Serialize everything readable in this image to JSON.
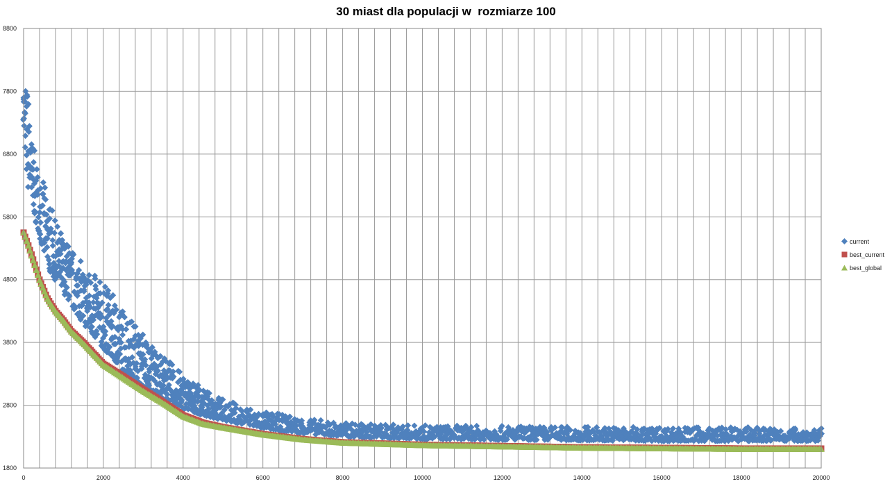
{
  "chart_data": {
    "type": "scatter",
    "title": "30 miast dla populacji w  rozmiarze 100",
    "xlabel": "",
    "ylabel": "",
    "xlim": [
      0,
      20000
    ],
    "ylim": [
      1800,
      8800
    ],
    "xticks": [
      0,
      2000,
      4000,
      6000,
      8000,
      10000,
      12000,
      14000,
      16000,
      18000,
      20000
    ],
    "yticks": [
      1800,
      2800,
      3800,
      4800,
      5800,
      6800,
      7800,
      8800
    ],
    "vertical_gridline_step": 400,
    "grid": true,
    "legend_position": "right",
    "series": [
      {
        "name": "current",
        "color": "#4f81bd",
        "marker": "diamond",
        "x": [
          0,
          100,
          200,
          400,
          600,
          800,
          1000,
          1500,
          2000,
          2500,
          3000,
          3500,
          4000,
          4500,
          5000,
          6000,
          7000,
          8000,
          10000,
          12000,
          14000,
          16000,
          18000,
          20000
        ],
        "y_min": [
          7250,
          6300,
          6100,
          5450,
          5000,
          4800,
          4600,
          4100,
          3700,
          3350,
          3100,
          2900,
          2750,
          2640,
          2560,
          2430,
          2350,
          2300,
          2260,
          2250,
          2240,
          2230,
          2230,
          2230
        ],
        "y_max": [
          7950,
          7900,
          7100,
          6500,
          6150,
          5750,
          5500,
          5050,
          4750,
          4350,
          3950,
          3600,
          3300,
          3050,
          2900,
          2700,
          2600,
          2520,
          2480,
          2470,
          2460,
          2450,
          2450,
          2430
        ]
      },
      {
        "name": "best_current",
        "color": "#c0504d",
        "marker": "square",
        "x": [
          0,
          100,
          200,
          300,
          400,
          500,
          600,
          800,
          1000,
          1200,
          1500,
          2000,
          2500,
          3000,
          3500,
          4000,
          4500,
          5000,
          6000,
          7000,
          8000,
          10000,
          12000,
          14000,
          16000,
          18000,
          20000
        ],
        "y": [
          5550,
          5380,
          5200,
          5000,
          4800,
          4650,
          4500,
          4300,
          4150,
          3980,
          3800,
          3460,
          3260,
          3050,
          2850,
          2640,
          2520,
          2450,
          2340,
          2260,
          2210,
          2170,
          2150,
          2130,
          2120,
          2110,
          2110
        ]
      },
      {
        "name": "best_global",
        "color": "#9bbb59",
        "marker": "triangle",
        "x": [
          0,
          100,
          200,
          300,
          400,
          500,
          600,
          800,
          1000,
          1200,
          1500,
          2000,
          2500,
          3000,
          3500,
          4000,
          4500,
          5000,
          6000,
          7000,
          8000,
          10000,
          12000,
          14000,
          16000,
          18000,
          20000
        ],
        "y": [
          5550,
          5380,
          5180,
          4990,
          4790,
          4640,
          4490,
          4290,
          4140,
          3970,
          3780,
          3440,
          3230,
          3020,
          2830,
          2620,
          2500,
          2440,
          2330,
          2250,
          2200,
          2160,
          2140,
          2120,
          2110,
          2100,
          2100
        ]
      }
    ]
  }
}
